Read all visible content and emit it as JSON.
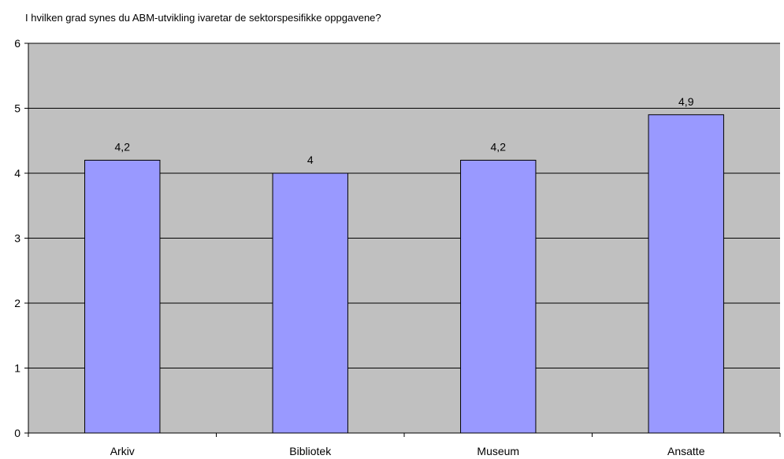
{
  "chart_data": {
    "type": "bar",
    "title": "I hvilken grad synes du ABM-utvikling ivaretar de sektorspesifikke oppgavene?",
    "categories": [
      "Arkiv",
      "Bibliotek",
      "Museum",
      "Ansatte"
    ],
    "values": [
      4.2,
      4,
      4.2,
      4.9
    ],
    "value_labels": [
      "4,2",
      "4",
      "4,2",
      "4,9"
    ],
    "ylim": [
      0,
      6
    ],
    "yticks": [
      "0",
      "1",
      "2",
      "3",
      "4",
      "5",
      "6"
    ],
    "xlabel": "",
    "ylabel": "",
    "grid": true,
    "colors": {
      "plot_bg": "#c0c0c0",
      "bar_fill": "#9999ff",
      "bar_stroke": "#000000",
      "grid": "#000000"
    }
  }
}
